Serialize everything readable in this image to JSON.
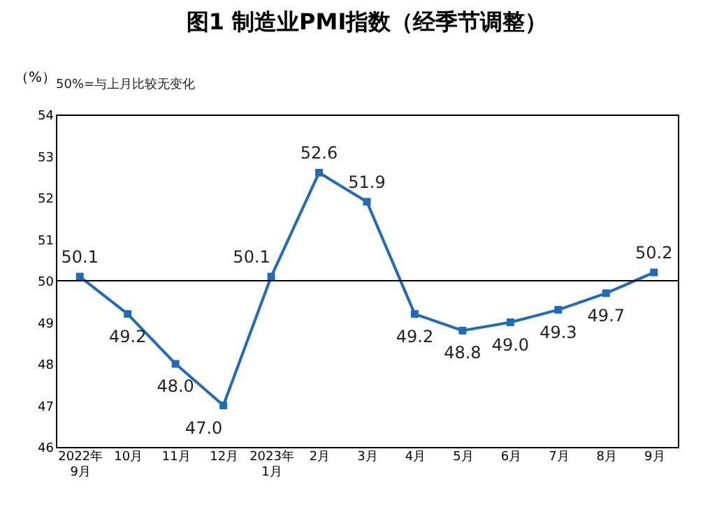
{
  "chart_data": {
    "type": "line",
    "title": "图1 制造业PMI指数（经季节调整）",
    "ylabel": "（%）",
    "annotations": [
      "50%=与上月比较无变化"
    ],
    "categories": [
      "2022年\n9月",
      "10月",
      "11月",
      "12月",
      "2023年\n1月",
      "2月",
      "3月",
      "4月",
      "5月",
      "6月",
      "7月",
      "8月",
      "9月"
    ],
    "series": [
      {
        "color": "#1f6bb5",
        "values": [
          50.1,
          49.2,
          48.0,
          47.0,
          50.1,
          52.6,
          51.9,
          49.2,
          48.8,
          49.0,
          49.3,
          49.7,
          50.2
        ],
        "value_labels": [
          "50.1",
          "49.2",
          "48.0",
          "47.0",
          "50.1",
          "52.6",
          "51.9",
          "49.2",
          "48.8",
          "49.0",
          "49.3",
          "49.7",
          "50.2"
        ]
      }
    ],
    "ylim": [
      46,
      54
    ],
    "yticks": [
      46,
      47,
      48,
      49,
      50,
      51,
      52,
      53,
      54
    ],
    "ref_lines": [
      {
        "axis": "y",
        "value": 50,
        "color": "#000000"
      }
    ],
    "marker": "square",
    "line_style": "solid",
    "grid": false
  }
}
